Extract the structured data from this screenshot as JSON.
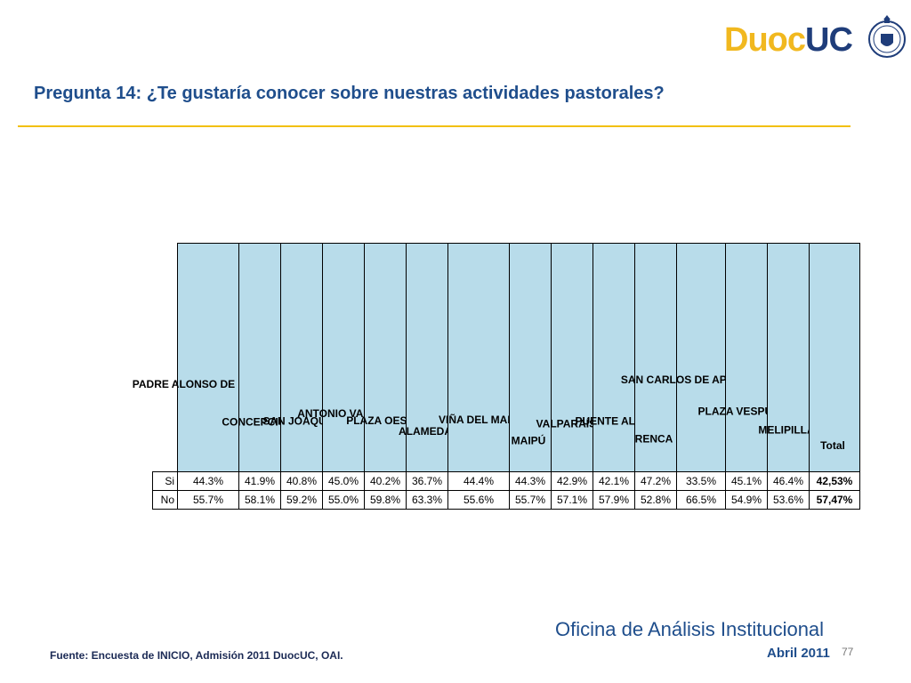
{
  "brand": {
    "name_part1": "Duoc",
    "name_part2": "UC",
    "color_gold": "#f1b81f",
    "color_blue": "#1f3d7a"
  },
  "slide": {
    "title": "Pregunta 14: ¿Te gustaría conocer sobre nuestras actividades pastorales?",
    "source": "Fuente: Encuesta de INICIO, Admisión 2011 DuocUC, OAI.",
    "office": "Oficina de Análisis Institucional",
    "date": "Abril 2011",
    "page_number": "77"
  },
  "table": {
    "columns": [
      "PADRE ALONSO DE OVALLE",
      "CONCEPCIÓN",
      "SAN JOAQUIN",
      "ANTONIO VARAS",
      "PLAZA OESTE",
      "ALAMEDA",
      "VIÑA DEL MAR",
      "MAIPÚ",
      "VALPARAÍSO",
      "PUENTE ALTO",
      "RENCA",
      "SAN CARLOS DE APOQUINDO",
      "PLAZA VESPUCIO",
      "MELIPILLA",
      "Total"
    ],
    "rows": [
      {
        "label": "Si",
        "values": [
          "44.3%",
          "41.9%",
          "40.8%",
          "45.0%",
          "40.2%",
          "36.7%",
          "44.4%",
          "44.3%",
          "42.9%",
          "42.1%",
          "47.2%",
          "33.5%",
          "45.1%",
          "46.4%",
          "42,53%"
        ]
      },
      {
        "label": "No",
        "values": [
          "55.7%",
          "58.1%",
          "59.2%",
          "55.0%",
          "59.8%",
          "63.3%",
          "55.6%",
          "55.7%",
          "57.1%",
          "57.9%",
          "52.8%",
          "66.5%",
          "54.9%",
          "53.6%",
          "57,47%"
        ]
      }
    ]
  }
}
